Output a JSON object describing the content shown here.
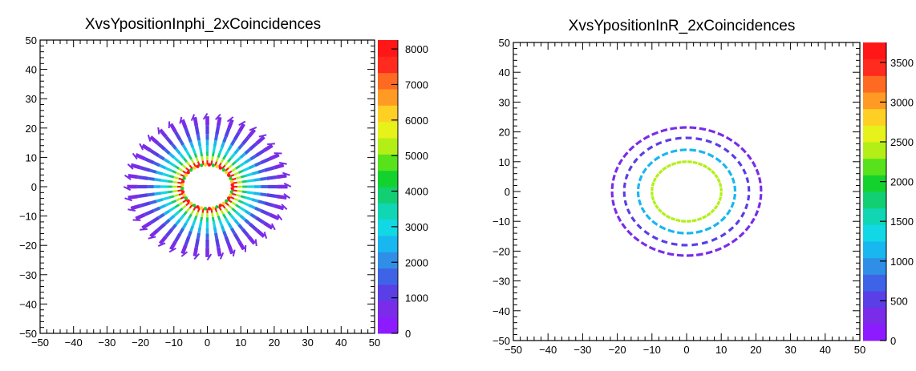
{
  "chart_data": [
    {
      "type": "heatmap",
      "title": "XvsYpositionInphi_2xCoincidences",
      "xlabel": "",
      "ylabel": "",
      "xlim": [
        -50,
        50
      ],
      "ylim": [
        -50,
        50
      ],
      "xticks": [
        -50,
        -40,
        -30,
        -20,
        -10,
        0,
        10,
        20,
        30,
        40,
        50
      ],
      "yticks": [
        -50,
        -40,
        -30,
        -20,
        -10,
        0,
        10,
        20,
        30,
        40,
        50
      ],
      "zlim": [
        0,
        8250
      ],
      "zticks": [
        0,
        1000,
        2000,
        3000,
        4000,
        5000,
        6000,
        7000,
        8000
      ],
      "zscale_colors": [
        "#8c1cff",
        "#7a2ce8",
        "#5a3ee6",
        "#3f63e6",
        "#2f8fe6",
        "#18b7ef",
        "#12d8e6",
        "#10d6b4",
        "#12cf73",
        "#14d22d",
        "#58e21b",
        "#b3ef17",
        "#e7f11a",
        "#ffd024",
        "#ff9a24",
        "#ff6a22",
        "#ff2b1f",
        "#ff1717"
      ],
      "pattern": "radial-spokes",
      "spokes": 40,
      "inner_radius": 7.5,
      "outer_radius": 25,
      "ring_counts": [
        {
          "r": 7.5,
          "z": 7800
        },
        {
          "r": 9,
          "z": 5200
        },
        {
          "r": 10.5,
          "z": 3800
        },
        {
          "r": 12,
          "z": 3000
        },
        {
          "r": 14,
          "z": 2300
        },
        {
          "r": 16,
          "z": 1600
        },
        {
          "r": 18,
          "z": 1100
        },
        {
          "r": 21,
          "z": 800
        },
        {
          "r": 24,
          "z": 600
        }
      ]
    },
    {
      "type": "heatmap",
      "title": "XvsYpositionInR_2xCoincidences",
      "xlabel": "",
      "ylabel": "",
      "xlim": [
        -50,
        50
      ],
      "ylim": [
        -50,
        50
      ],
      "xticks": [
        -50,
        -40,
        -30,
        -20,
        -10,
        0,
        10,
        20,
        30,
        40,
        50
      ],
      "yticks": [
        -50,
        -40,
        -30,
        -20,
        -10,
        0,
        10,
        20,
        30,
        40,
        50
      ],
      "zlim": [
        0,
        3750
      ],
      "zticks": [
        0,
        500,
        1000,
        1500,
        2000,
        2500,
        3000,
        3500
      ],
      "zscale_colors": [
        "#8c1cff",
        "#7a2ce8",
        "#5a3ee6",
        "#3f63e6",
        "#2f8fe6",
        "#18b7ef",
        "#12d8e6",
        "#10d6b4",
        "#12cf73",
        "#14d22d",
        "#58e21b",
        "#b3ef17",
        "#e7f11a",
        "#ffd024",
        "#ff9a24",
        "#ff6a22",
        "#ff2b1f",
        "#ff1717"
      ],
      "pattern": "concentric-rings",
      "rings": [
        {
          "r": 10,
          "z": 2400,
          "segments": 40,
          "fill": 0.85
        },
        {
          "r": 14,
          "z": 1050,
          "segments": 32,
          "fill": 0.7
        },
        {
          "r": 18,
          "z": 550,
          "segments": 38,
          "fill": 0.6
        },
        {
          "r": 21.5,
          "z": 400,
          "segments": 48,
          "fill": 0.7
        }
      ]
    }
  ]
}
